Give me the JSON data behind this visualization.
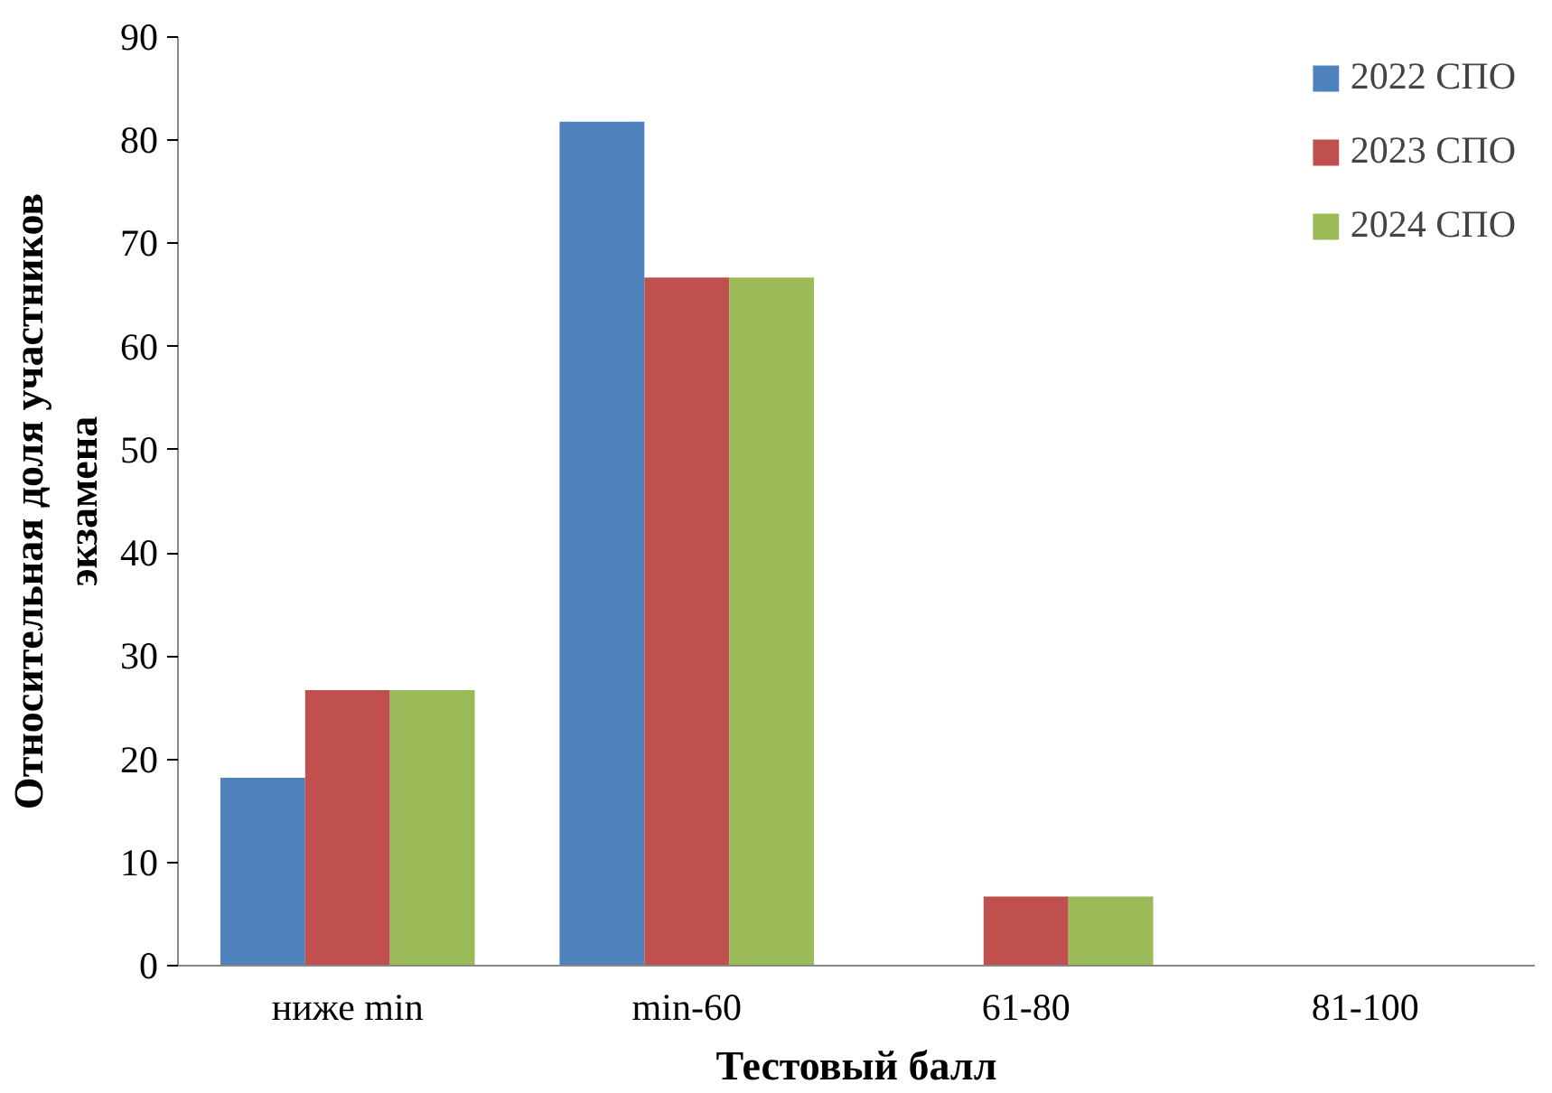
{
  "chart_data": {
    "type": "bar",
    "xlabel": "Тестовый балл",
    "ylabel": "Относительная доля участников\nэкзамена",
    "categories": [
      "ниже min",
      "min-60",
      "61-80",
      "81-100"
    ],
    "series": [
      {
        "name": "2022 СПО",
        "color": "#4f81bd",
        "values": [
          18.2,
          81.8,
          0,
          0
        ]
      },
      {
        "name": "2023 СПО",
        "color": "#c0504d",
        "values": [
          26.7,
          66.7,
          6.7,
          0
        ]
      },
      {
        "name": "2024 СПО",
        "color": "#9bbb59",
        "values": [
          26.7,
          66.7,
          6.7,
          0
        ]
      }
    ],
    "ylim": [
      0,
      90
    ],
    "yticks": [
      0,
      10,
      20,
      30,
      40,
      50,
      60,
      70,
      80,
      90
    ],
    "grid": false,
    "legend": "top right"
  }
}
